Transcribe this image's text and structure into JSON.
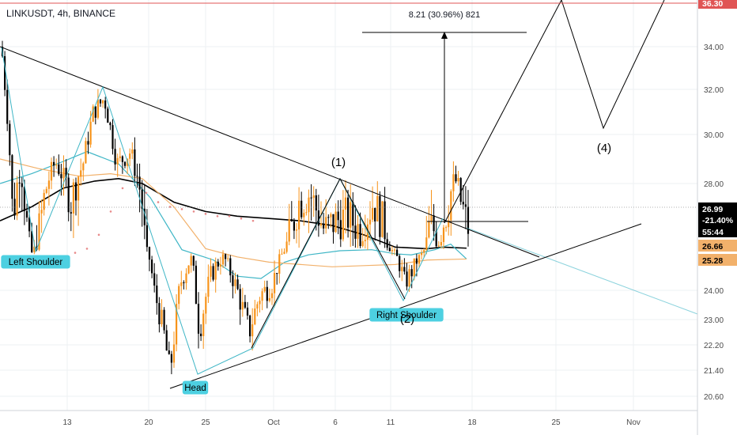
{
  "header": {
    "symbol_label": "LINKUSDT, 4h, BINANCE"
  },
  "colors": {
    "bg": "#ffffff",
    "grid": "#eef0f3",
    "axis_text": "#4a4a4a",
    "up_candle": "#f7931a",
    "down_candle": "#000000",
    "ma_black": "#000000",
    "ma_teal": "#3fb6c6",
    "ma_orange": "#f2b16b",
    "psar": "#e88a8a",
    "annotation": "#000000",
    "label_bg": "#4dd0e1",
    "price_tag_bg": "#000000",
    "tag_orange": "#f2b16b",
    "top_line": "#e05555"
  },
  "chart_data": {
    "type": "candlestick",
    "x_ticks": [
      "13",
      "20",
      "25",
      "Oct",
      "6",
      "11",
      "18",
      "25",
      "Nov"
    ],
    "y_ticks": [
      "20.60",
      "21.40",
      "22.20",
      "23.00",
      "24.00",
      "25.28",
      "26.66",
      "28.00",
      "30.00",
      "32.00",
      "34.00",
      "36.30"
    ],
    "y_range": [
      20.2,
      36.4
    ],
    "pattern_labels": [
      "Left Shoulder",
      "Head",
      "Right Shoulder"
    ],
    "wave_labels": [
      "(1)",
      "(2)",
      "(4)"
    ],
    "projection_label": "8.21 (30.96%) 821",
    "price_tags": [
      {
        "value": "26.99",
        "variant": "dark"
      },
      {
        "value": "-21.40%",
        "variant": "dark"
      },
      {
        "value": "55:44",
        "variant": "dark"
      },
      {
        "value": "26.66",
        "variant": "orange"
      },
      {
        "value": "25.28",
        "variant": "orange"
      },
      {
        "value": "36.30",
        "variant": "top"
      }
    ]
  }
}
